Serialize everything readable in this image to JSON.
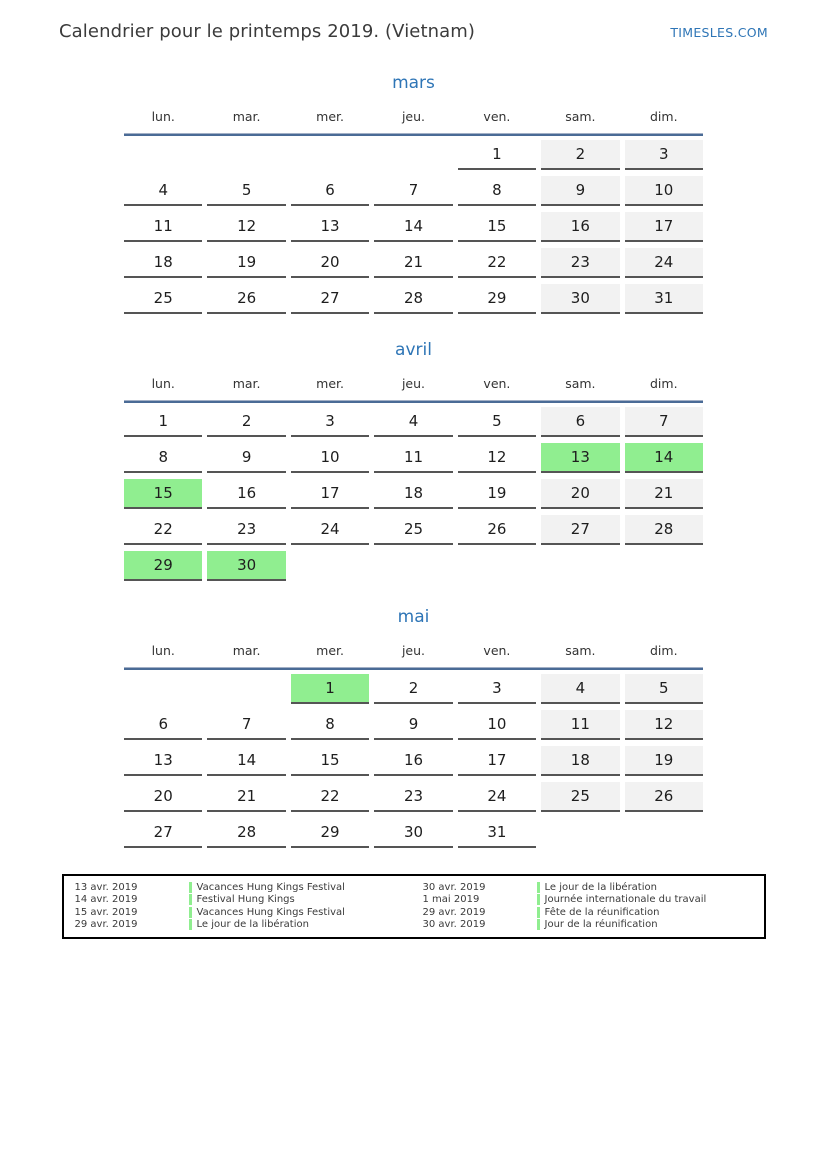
{
  "header": {
    "title": "Calendrier pour le printemps 2019. (Vietnam)",
    "site": "TIMESLES.COM"
  },
  "weekdays": [
    "lun.",
    "mar.",
    "mer.",
    "jeu.",
    "ven.",
    "sam.",
    "dim."
  ],
  "months": [
    {
      "name": "mars",
      "weeks": [
        [
          null,
          null,
          null,
          null,
          1,
          2,
          3
        ],
        [
          4,
          5,
          6,
          7,
          8,
          9,
          10
        ],
        [
          11,
          12,
          13,
          14,
          15,
          16,
          17
        ],
        [
          18,
          19,
          20,
          21,
          22,
          23,
          24
        ],
        [
          25,
          26,
          27,
          28,
          29,
          30,
          31
        ]
      ],
      "holidays": []
    },
    {
      "name": "avril",
      "weeks": [
        [
          1,
          2,
          3,
          4,
          5,
          6,
          7
        ],
        [
          8,
          9,
          10,
          11,
          12,
          13,
          14
        ],
        [
          15,
          16,
          17,
          18,
          19,
          20,
          21
        ],
        [
          22,
          23,
          24,
          25,
          26,
          27,
          28
        ],
        [
          29,
          30,
          null,
          null,
          null,
          null,
          null
        ]
      ],
      "holidays": [
        13,
        14,
        15,
        29,
        30
      ]
    },
    {
      "name": "mai",
      "weeks": [
        [
          null,
          null,
          1,
          2,
          3,
          4,
          5
        ],
        [
          6,
          7,
          8,
          9,
          10,
          11,
          12
        ],
        [
          13,
          14,
          15,
          16,
          17,
          18,
          19
        ],
        [
          20,
          21,
          22,
          23,
          24,
          25,
          26
        ],
        [
          27,
          28,
          29,
          30,
          31,
          null,
          null
        ]
      ],
      "holidays": [
        1
      ]
    }
  ],
  "legend": {
    "columns": [
      {
        "entries": [
          {
            "date": "13 avr. 2019",
            "name": "Vacances Hung Kings Festival"
          },
          {
            "date": "14 avr. 2019",
            "name": "Festival Hung Kings"
          },
          {
            "date": "15 avr. 2019",
            "name": "Vacances Hung Kings Festival"
          },
          {
            "date": "29 avr. 2019",
            "name": "Le jour de la libération"
          }
        ]
      },
      {
        "entries": [
          {
            "date": "30 avr. 2019",
            "name": "Le jour de la libération"
          },
          {
            "date": "1 mai 2019",
            "name": "Journée internationale du travail"
          },
          {
            "date": "29 avr. 2019",
            "name": "Fête de la réunification"
          },
          {
            "date": "30 avr. 2019",
            "name": "Jour de la réunification"
          }
        ]
      }
    ]
  },
  "colors": {
    "accent_blue": "#2e75b6",
    "header_line_blue": "#4a6b96",
    "holiday_green": "#90ee90",
    "weekend_gray": "#f2f2f2",
    "cell_underline": "#555555"
  }
}
